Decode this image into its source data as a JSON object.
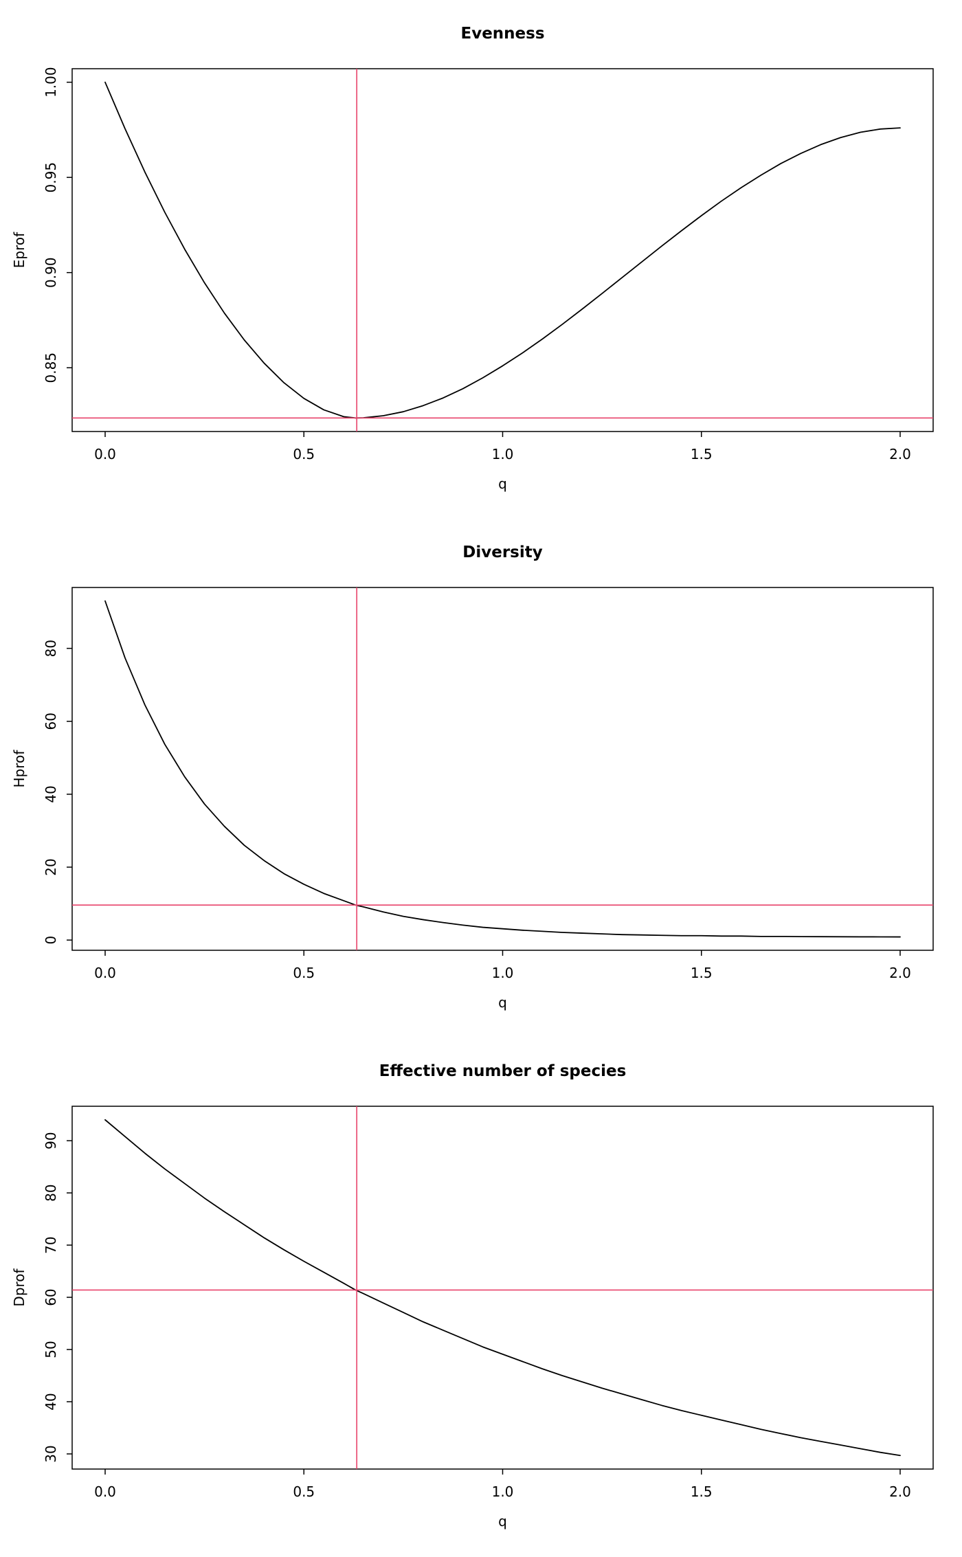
{
  "page": {
    "background": "#ffffff",
    "curve_color": "#000000",
    "crosshair_color": "#e8436b"
  },
  "chart_data": [
    {
      "type": "line",
      "title": "Evenness",
      "xlabel": "q",
      "ylabel": "Eprof",
      "xlim": [
        -0.083,
        2.083
      ],
      "ylim": [
        0.8165,
        1.0071
      ],
      "xticks": [
        0.0,
        0.5,
        1.0,
        1.5,
        2.0
      ],
      "xtick_labels": [
        "0.0",
        "0.5",
        "1.0",
        "1.5",
        "2.0"
      ],
      "yticks": [
        0.85,
        0.9,
        0.95,
        1.0
      ],
      "ytick_labels": [
        "0.85",
        "0.90",
        "0.95",
        "1.00"
      ],
      "grid": false,
      "legend": "none",
      "crosshair": {
        "x": 0.633,
        "y": 0.8236,
        "color": "#e8436b"
      },
      "series": [
        {
          "name": "Eprof",
          "color": "#000000",
          "x": [
            0.0,
            0.05,
            0.1,
            0.15,
            0.2,
            0.25,
            0.3,
            0.35,
            0.4,
            0.45,
            0.5,
            0.55,
            0.6,
            0.63,
            0.65,
            0.7,
            0.75,
            0.8,
            0.85,
            0.9,
            0.95,
            1.0,
            1.05,
            1.1,
            1.15,
            1.2,
            1.25,
            1.3,
            1.35,
            1.4,
            1.45,
            1.5,
            1.55,
            1.6,
            1.65,
            1.7,
            1.75,
            1.8,
            1.85,
            1.9,
            1.95,
            2.0
          ],
          "y": [
            1.0,
            0.9756,
            0.9528,
            0.9317,
            0.9123,
            0.8946,
            0.8787,
            0.8646,
            0.8524,
            0.8421,
            0.8339,
            0.8279,
            0.8243,
            0.8236,
            0.8237,
            0.8248,
            0.8269,
            0.8301,
            0.8341,
            0.839,
            0.8447,
            0.851,
            0.8578,
            0.8651,
            0.8728,
            0.8808,
            0.889,
            0.8973,
            0.9056,
            0.9139,
            0.922,
            0.9299,
            0.9375,
            0.9446,
            0.9512,
            0.9573,
            0.9626,
            0.9672,
            0.9709,
            0.9737,
            0.9754,
            0.976
          ]
        }
      ]
    },
    {
      "type": "line",
      "title": "Diversity",
      "xlabel": "q",
      "ylabel": "Hprof",
      "xlim": [
        -0.083,
        2.083
      ],
      "ylim": [
        -2.8,
        96.7
      ],
      "xticks": [
        0.0,
        0.5,
        1.0,
        1.5,
        2.0
      ],
      "xtick_labels": [
        "0.0",
        "0.5",
        "1.0",
        "1.5",
        "2.0"
      ],
      "yticks": [
        0,
        20,
        40,
        60,
        80
      ],
      "ytick_labels": [
        "0",
        "20",
        "40",
        "60",
        "80"
      ],
      "grid": false,
      "legend": "none",
      "crosshair": {
        "x": 0.633,
        "y": 9.6,
        "color": "#e8436b"
      },
      "series": [
        {
          "name": "Hprof",
          "color": "#000000",
          "x": [
            0.0,
            0.05,
            0.1,
            0.15,
            0.2,
            0.25,
            0.3,
            0.35,
            0.4,
            0.45,
            0.5,
            0.55,
            0.6,
            0.63,
            0.65,
            0.7,
            0.75,
            0.8,
            0.85,
            0.9,
            0.95,
            1.0,
            1.05,
            1.1,
            1.15,
            1.2,
            1.25,
            1.3,
            1.35,
            1.4,
            1.45,
            1.5,
            1.55,
            1.6,
            1.65,
            1.7,
            1.75,
            1.8,
            1.85,
            1.9,
            1.95,
            2.0
          ],
          "y": [
            93.0,
            77.4,
            64.5,
            53.7,
            44.8,
            37.3,
            31.2,
            26.0,
            21.8,
            18.2,
            15.3,
            12.8,
            10.8,
            9.6,
            9.1,
            7.7,
            6.5,
            5.6,
            4.8,
            4.1,
            3.5,
            3.1,
            2.7,
            2.4,
            2.1,
            1.9,
            1.7,
            1.5,
            1.4,
            1.3,
            1.2,
            1.2,
            1.1,
            1.1,
            1.0,
            1.0,
            0.95,
            0.93,
            0.91,
            0.89,
            0.88,
            0.86
          ]
        }
      ]
    },
    {
      "type": "line",
      "title": "Effective number of species",
      "xlabel": "q",
      "ylabel": "Dprof",
      "xlim": [
        -0.083,
        2.083
      ],
      "ylim": [
        27.1,
        96.6
      ],
      "xticks": [
        0.0,
        0.5,
        1.0,
        1.5,
        2.0
      ],
      "xtick_labels": [
        "0.0",
        "0.5",
        "1.0",
        "1.5",
        "2.0"
      ],
      "yticks": [
        30,
        40,
        50,
        60,
        70,
        80,
        90
      ],
      "ytick_labels": [
        "30",
        "40",
        "50",
        "60",
        "70",
        "80",
        "90"
      ],
      "grid": false,
      "legend": "none",
      "crosshair": {
        "x": 0.633,
        "y": 61.4,
        "color": "#e8436b"
      },
      "series": [
        {
          "name": "Dprof",
          "color": "#000000",
          "x": [
            0.0,
            0.05,
            0.1,
            0.15,
            0.2,
            0.25,
            0.3,
            0.35,
            0.4,
            0.45,
            0.5,
            0.55,
            0.6,
            0.63,
            0.65,
            0.7,
            0.75,
            0.8,
            0.85,
            0.9,
            0.95,
            1.0,
            1.05,
            1.1,
            1.15,
            1.2,
            1.25,
            1.3,
            1.35,
            1.4,
            1.45,
            1.5,
            1.55,
            1.6,
            1.65,
            1.7,
            1.75,
            1.8,
            1.85,
            1.9,
            1.95,
            2.0
          ],
          "y": [
            94.0,
            90.8,
            87.6,
            84.6,
            81.8,
            79.0,
            76.4,
            73.9,
            71.4,
            69.1,
            66.9,
            64.8,
            62.7,
            61.4,
            60.7,
            58.9,
            57.1,
            55.3,
            53.7,
            52.1,
            50.5,
            49.1,
            47.7,
            46.3,
            45.0,
            43.8,
            42.6,
            41.5,
            40.4,
            39.3,
            38.3,
            37.4,
            36.5,
            35.6,
            34.7,
            33.9,
            33.1,
            32.4,
            31.7,
            31.0,
            30.3,
            29.7
          ]
        }
      ]
    }
  ]
}
